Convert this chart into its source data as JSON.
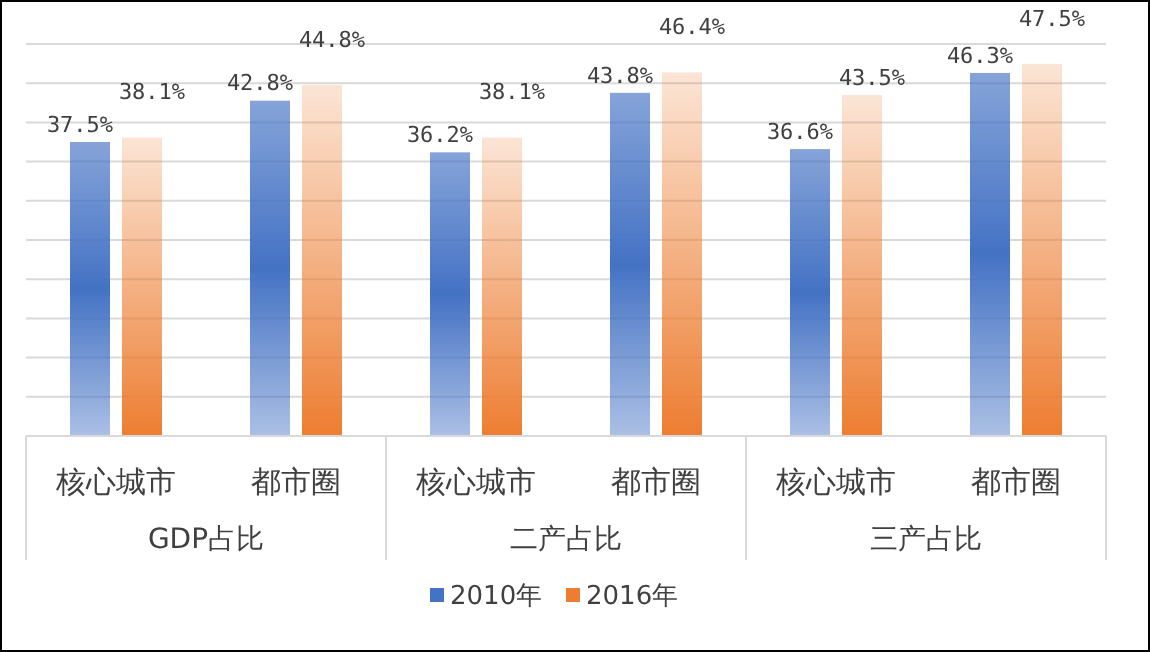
{
  "chart_data": {
    "type": "bar",
    "categories": [
      "核心城市",
      "都市圈",
      "核心城市",
      "都市圈",
      "核心城市",
      "都市圈"
    ],
    "series": [
      {
        "name": "2010年",
        "color": "#4472c4",
        "values": [
          37.5,
          42.8,
          36.2,
          43.8,
          36.6,
          46.3
        ],
        "value_labels": [
          "37.5%",
          "42.8%",
          "36.2%",
          "43.8%",
          "36.6%",
          "46.3%"
        ]
      },
      {
        "name": "2016年",
        "color": "#ed7d31",
        "values": [
          38.1,
          44.8,
          38.1,
          46.4,
          43.5,
          47.5
        ],
        "value_labels": [
          "38.1%",
          "44.8%",
          "38.1%",
          "46.4%",
          "43.5%",
          "47.5%"
        ]
      }
    ],
    "annotations": [
      "GDP占比",
      "二产占比",
      "三产占比"
    ],
    "ylim": [
      0,
      50
    ],
    "yticks": [
      {
        "value": 0,
        "label": null
      },
      {
        "value": 5,
        "label": null
      },
      {
        "value": 10,
        "label": null
      },
      {
        "value": 15,
        "label": null
      },
      {
        "value": 20,
        "label": null
      },
      {
        "value": 25,
        "label": null
      },
      {
        "value": 30,
        "label": null
      },
      {
        "value": 35,
        "label": null
      },
      {
        "value": 40,
        "label": null
      },
      {
        "value": 45,
        "label": null
      },
      {
        "value": 50,
        "label": null
      }
    ],
    "tick_labels": "x",
    "grid": "y",
    "legend": "bottom"
  }
}
